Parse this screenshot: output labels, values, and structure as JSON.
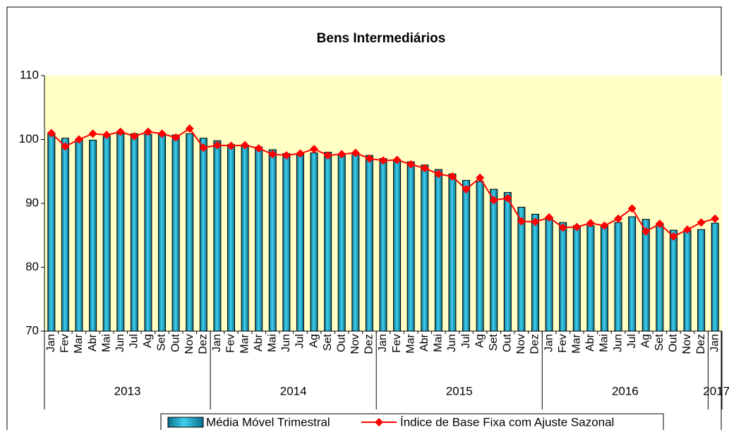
{
  "chart_data": {
    "type": "bar",
    "title": "Bens Intermediários",
    "categories": [
      "Jan",
      "Fev",
      "Mar",
      "Abr",
      "Mai",
      "Jun",
      "Jul",
      "Ag",
      "Set",
      "Out",
      "Nov",
      "Dez",
      "Jan",
      "Fev",
      "Mar",
      "Abr",
      "Mai",
      "Jun",
      "Jul",
      "Ag",
      "Set",
      "Out",
      "Nov",
      "Dez",
      "Jan",
      "Fev",
      "Mar",
      "Abr",
      "Mai",
      "Jun",
      "Jul",
      "Ag",
      "Set",
      "Out",
      "Nov",
      "Dez",
      "Jan",
      "Fev",
      "Mar",
      "Abr",
      "Mai",
      "Jun",
      "Jul",
      "Ag",
      "Set",
      "Out",
      "Nov",
      "Dez",
      "Jan"
    ],
    "groups": [
      "2013",
      "2014",
      "2015",
      "2016",
      "2017"
    ],
    "series": [
      {
        "name": "Média Móvel Trimestral",
        "type": "bar",
        "color": "#19a4c6",
        "values": [
          100.9,
          100.2,
          99.9,
          99.9,
          100.5,
          100.9,
          100.9,
          100.8,
          101.0,
          100.7,
          100.9,
          100.2,
          99.8,
          99.2,
          99.0,
          98.8,
          98.4,
          97.8,
          97.7,
          97.9,
          98.0,
          97.6,
          97.8,
          97.5,
          97.0,
          96.6,
          96.5,
          96.0,
          95.3,
          94.6,
          93.6,
          93.4,
          92.2,
          91.7,
          89.4,
          88.3,
          87.7,
          87.0,
          86.5,
          86.5,
          86.6,
          87.0,
          87.9,
          87.5,
          86.9,
          85.8,
          85.7,
          85.9,
          86.9
        ]
      },
      {
        "name": "Índice de Base Fixa com Ajuste Sazonal",
        "type": "line",
        "color": "#ff0000",
        "values": [
          101.0,
          98.9,
          100.0,
          100.9,
          100.7,
          101.2,
          100.5,
          101.2,
          100.9,
          100.3,
          101.7,
          98.7,
          99.1,
          99.0,
          99.1,
          98.6,
          97.7,
          97.5,
          97.8,
          98.5,
          97.5,
          97.7,
          97.9,
          97.0,
          96.7,
          96.8,
          96.1,
          95.5,
          94.6,
          94.2,
          92.2,
          94.0,
          90.5,
          90.8,
          87.2,
          87.1,
          87.8,
          86.2,
          86.3,
          86.9,
          86.5,
          87.6,
          89.2,
          85.6,
          86.8,
          84.8,
          85.9,
          87.0,
          87.6
        ]
      }
    ],
    "ylim": [
      70,
      110
    ],
    "yticks": [
      70,
      80,
      90,
      100,
      110
    ],
    "grid": false,
    "legend": "bottom"
  }
}
